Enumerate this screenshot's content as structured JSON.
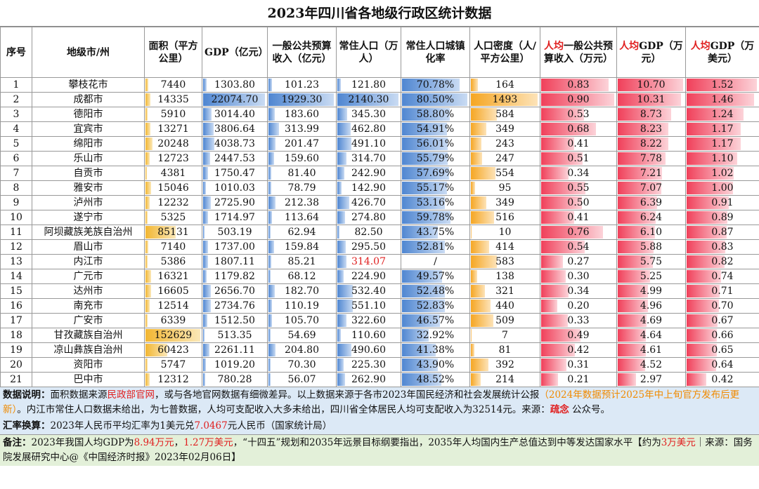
{
  "title": "2023年四川省各地级行政区统计数据",
  "table": {
    "headers": [
      {
        "text": "序号"
      },
      {
        "text": "地级市/州"
      },
      {
        "text": "面积（平方公里）"
      },
      {
        "text": "GDP（亿元）"
      },
      {
        "text": "一般公共预算收入（亿元）"
      },
      {
        "text": "常住人口（万人）"
      },
      {
        "text": "常住人口城镇化率"
      },
      {
        "text": "人口密度（人/平方公里）"
      },
      {
        "prefix": "人均",
        "text": "一般公共预算收入（万元）"
      },
      {
        "prefix": "人均",
        "text": "GDP（万元）"
      },
      {
        "prefix": "人均",
        "text": "GDP（万美元）"
      }
    ],
    "bar_colors": [
      null,
      null,
      "#f2b632",
      "#4f86d1",
      "#4f86d1",
      "#4f86d1",
      "#4f86d1",
      "#f5a623",
      "#f0405a",
      "#f0405a",
      "#f0405a"
    ],
    "rows": [
      [
        "1",
        "攀枝花市",
        "7440",
        "1303.80",
        "101.23",
        "121.80",
        "70.78%",
        "164",
        "0.83",
        "10.70",
        "1.52"
      ],
      [
        "2",
        "成都市",
        "14335",
        "22074.70",
        "1929.30",
        "2140.30",
        "80.50%",
        "1493",
        "0.90",
        "10.31",
        "1.46"
      ],
      [
        "3",
        "德阳市",
        "5910",
        "3014.40",
        "183.60",
        "345.30",
        "58.80%",
        "584",
        "0.53",
        "8.73",
        "1.24"
      ],
      [
        "4",
        "宜宾市",
        "13271",
        "3806.64",
        "313.99",
        "462.80",
        "54.91%",
        "349",
        "0.68",
        "8.23",
        "1.17"
      ],
      [
        "5",
        "绵阳市",
        "20248",
        "4038.73",
        "201.47",
        "491.10",
        "56.01%",
        "243",
        "0.41",
        "8.22",
        "1.17"
      ],
      [
        "6",
        "乐山市",
        "12723",
        "2447.53",
        "159.60",
        "314.70",
        "55.79%",
        "247",
        "0.51",
        "7.78",
        "1.10"
      ],
      [
        "7",
        "自贡市",
        "4381",
        "1750.47",
        "81.40",
        "242.90",
        "57.69%",
        "554",
        "0.34",
        "7.21",
        "1.02"
      ],
      [
        "8",
        "雅安市",
        "15046",
        "1010.03",
        "78.79",
        "142.90",
        "55.17%",
        "95",
        "0.55",
        "7.07",
        "1.00"
      ],
      [
        "9",
        "泸州市",
        "12232",
        "2725.90",
        "212.38",
        "426.70",
        "53.16%",
        "349",
        "0.50",
        "6.39",
        "0.91"
      ],
      [
        "10",
        "遂宁市",
        "5325",
        "1714.97",
        "113.64",
        "274.80",
        "59.78%",
        "516",
        "0.41",
        "6.24",
        "0.89"
      ],
      [
        "11",
        "阿坝藏族羌族自治州",
        "85131",
        "503.19",
        "62.94",
        "82.50",
        "43.75%",
        "10",
        "0.76",
        "6.10",
        "0.87"
      ],
      [
        "12",
        "眉山市",
        "7140",
        "1737.00",
        "159.84",
        "295.50",
        "52.81%",
        "414",
        "0.54",
        "5.88",
        "0.83"
      ],
      [
        "13",
        "内江市",
        "5386",
        "1807.11",
        "85.21",
        {
          "text": "314.07",
          "color": "#e02020"
        },
        "/",
        "583",
        "0.27",
        "5.75",
        "0.82"
      ],
      [
        "14",
        "广元市",
        "16321",
        "1179.82",
        "68.12",
        "224.90",
        "49.57%",
        "138",
        "0.30",
        "5.25",
        "0.74"
      ],
      [
        "15",
        "达州市",
        "16605",
        "2656.70",
        "182.70",
        "532.40",
        "52.48%",
        "321",
        "0.34",
        "4.99",
        "0.71"
      ],
      [
        "16",
        "南充市",
        "12514",
        "2734.76",
        "110.19",
        "551.10",
        "52.83%",
        "440",
        "0.20",
        "4.96",
        "0.70"
      ],
      [
        "17",
        "广安市",
        "6339",
        "1512.50",
        "105.70",
        "322.60",
        "46.57%",
        "509",
        "0.33",
        "4.69",
        "0.67"
      ],
      [
        "18",
        "甘孜藏族自治州",
        "152629",
        "513.35",
        "54.69",
        "110.60",
        "32.92%",
        "7",
        "0.49",
        "4.64",
        "0.66"
      ],
      [
        "19",
        "凉山彝族自治州",
        "60423",
        "2261.11",
        "204.80",
        "490.60",
        "41.38%",
        "81",
        "0.42",
        "4.61",
        "0.65"
      ],
      [
        "20",
        "资阳市",
        "5747",
        "1019.20",
        "70.30",
        "225.30",
        "43.90%",
        "392",
        "0.31",
        "4.52",
        "0.64"
      ],
      [
        "21",
        "巴中市",
        "12312",
        "780.28",
        "56.07",
        "262.90",
        "48.52%",
        "214",
        "0.21",
        "2.97",
        "0.42"
      ]
    ]
  },
  "notes": [
    [
      {
        "text": "数据说明：",
        "style": "bold"
      },
      {
        "text": "面积数据来源"
      },
      {
        "text": "民政部官网",
        "style": "red"
      },
      {
        "text": "，或与各地官网数据有细微差异。以上数据来源于各市2023年国民经济和社会发展统计公报"
      },
      {
        "text": "（2024年数据预计2025年中上旬官方发布后更新）",
        "style": "orange"
      },
      {
        "text": "。内江市常住人口数据未给出，为七普数据，人均可支配收入大多未给出，四川省全体居民人均可支配收入为32514元。来源："
      },
      {
        "text": "疏念",
        "style": "redbold"
      },
      {
        "text": " 公众号。"
      }
    ],
    [
      {
        "text": "汇率换算：",
        "style": "bold"
      },
      {
        "text": "2023年人民币平均汇率为1美元兑"
      },
      {
        "text": "7.0467",
        "style": "red"
      },
      {
        "text": "元人民币（国家统计局）"
      }
    ],
    [
      {
        "text": "备注：",
        "style": "bold"
      },
      {
        "text": "2023年我国人均GDP为"
      },
      {
        "text": "8.94万元",
        "style": "red"
      },
      {
        "text": "，"
      },
      {
        "text": "1.27万美元",
        "style": "red"
      },
      {
        "text": "，“十四五”规划和2035年远景目标纲要指出，2035年人均国内生产总值达到中等发达国家水平【约为"
      },
      {
        "text": "3万美元",
        "style": "red"
      },
      {
        "text": "｜来源：国务院发展研究中心@《中国经济时报》2023年02月06日】"
      }
    ]
  ]
}
